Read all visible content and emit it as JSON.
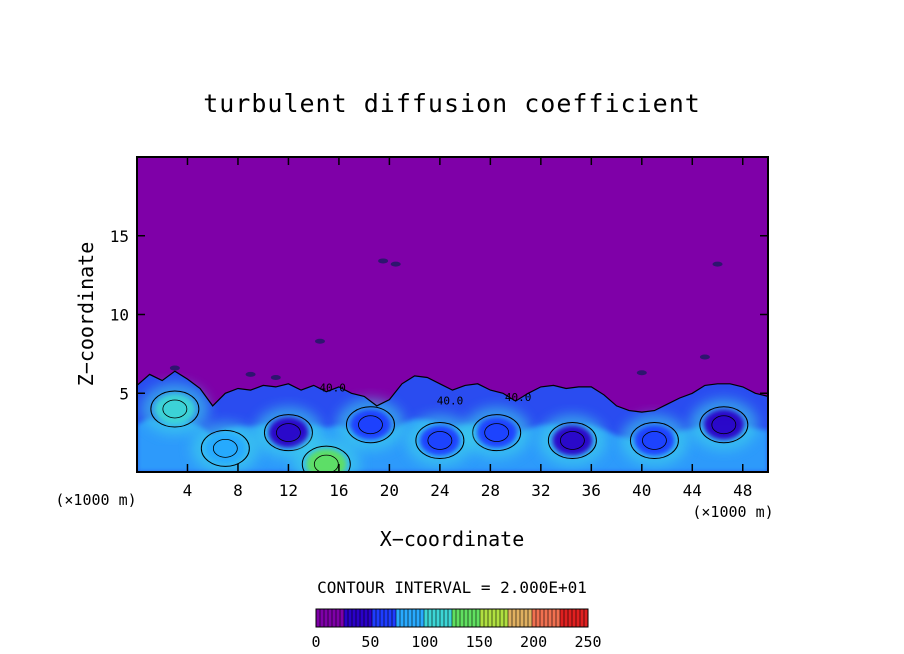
{
  "chart_data": {
    "type": "heatmap",
    "title": "turbulent diffusion coefficient",
    "xlabel": "X−coordinate",
    "ylabel": "Z−coordinate",
    "x_unit_left": "(×1000 m)",
    "x_unit_right": "(×1000 m)",
    "xlim": [
      0,
      50
    ],
    "ylim": [
      0,
      20
    ],
    "x_ticks": [
      4,
      8,
      12,
      16,
      20,
      24,
      28,
      32,
      36,
      40,
      44,
      48
    ],
    "x_tick_labels": [
      "4",
      "8",
      "12",
      "16",
      "20",
      "24",
      "28",
      "32",
      "36",
      "40",
      "44",
      "48"
    ],
    "y_ticks": [
      5,
      10,
      15
    ],
    "y_tick_labels": [
      "5",
      "10",
      "15"
    ],
    "contour_interval_text": "CONTOUR INTERVAL = 2.000E+01",
    "contour_interval": 20,
    "contour_labels": [
      {
        "text": "40.0",
        "x": 15.5,
        "y": 5.1
      },
      {
        "text": "40.0",
        "x": 24.8,
        "y": 4.3
      },
      {
        "text": "40.0",
        "x": 30.2,
        "y": 4.5
      }
    ],
    "background_value": 0,
    "colorbar": {
      "min": 0,
      "max": 250,
      "ticks": [
        0,
        50,
        100,
        150,
        200,
        250
      ],
      "tick_labels": [
        "0",
        "50",
        "100",
        "150",
        "200",
        "250"
      ],
      "colors": [
        "#7f00a8",
        "#2a00c8",
        "#1e3cff",
        "#28aaff",
        "#3cd6d6",
        "#60e060",
        "#b0e040",
        "#e0b060",
        "#f07050",
        "#e02020"
      ]
    },
    "turbulent_layer_top_profile": [
      [
        0,
        5.5
      ],
      [
        1,
        6.2
      ],
      [
        2,
        5.8
      ],
      [
        3,
        6.4
      ],
      [
        4,
        5.9
      ],
      [
        5,
        5.3
      ],
      [
        6,
        4.2
      ],
      [
        7,
        5.0
      ],
      [
        8,
        5.3
      ],
      [
        9,
        5.2
      ],
      [
        10,
        5.5
      ],
      [
        11,
        5.4
      ],
      [
        12,
        5.6
      ],
      [
        13,
        5.2
      ],
      [
        14,
        5.5
      ],
      [
        15,
        5.1
      ],
      [
        16,
        5.4
      ],
      [
        17,
        5.0
      ],
      [
        18,
        4.8
      ],
      [
        19,
        4.2
      ],
      [
        20,
        4.6
      ],
      [
        21,
        5.6
      ],
      [
        22,
        6.1
      ],
      [
        23,
        6.0
      ],
      [
        24,
        5.6
      ],
      [
        25,
        5.2
      ],
      [
        26,
        5.5
      ],
      [
        27,
        5.6
      ],
      [
        28,
        5.2
      ],
      [
        29,
        5.0
      ],
      [
        30,
        4.5
      ],
      [
        31,
        5.0
      ],
      [
        32,
        5.4
      ],
      [
        33,
        5.5
      ],
      [
        34,
        5.3
      ],
      [
        35,
        5.4
      ],
      [
        36,
        5.4
      ],
      [
        37,
        4.9
      ],
      [
        38,
        4.2
      ],
      [
        39,
        3.9
      ],
      [
        40,
        3.8
      ],
      [
        41,
        3.9
      ],
      [
        42,
        4.3
      ],
      [
        43,
        4.7
      ],
      [
        44,
        5.0
      ],
      [
        45,
        5.5
      ],
      [
        46,
        5.6
      ],
      [
        47,
        5.6
      ],
      [
        48,
        5.4
      ],
      [
        49,
        5.0
      ],
      [
        50,
        4.8
      ]
    ],
    "eddies": [
      {
        "x": 12.0,
        "z": 2.5,
        "value": 30
      },
      {
        "x": 18.5,
        "z": 3.0,
        "value": 60
      },
      {
        "x": 28.5,
        "z": 2.5,
        "value": 60
      },
      {
        "x": 34.5,
        "z": 2.0,
        "value": 25
      },
      {
        "x": 41.0,
        "z": 2.0,
        "value": 70
      },
      {
        "x": 46.5,
        "z": 3.0,
        "value": 40
      },
      {
        "x": 3.0,
        "z": 4.0,
        "value": 110
      },
      {
        "x": 15.0,
        "z": 0.5,
        "value": 140
      },
      {
        "x": 7.0,
        "z": 1.5,
        "value": 80
      },
      {
        "x": 24.0,
        "z": 2.0,
        "value": 60
      }
    ],
    "grid": false,
    "legend": "bottom-center colorbar"
  }
}
